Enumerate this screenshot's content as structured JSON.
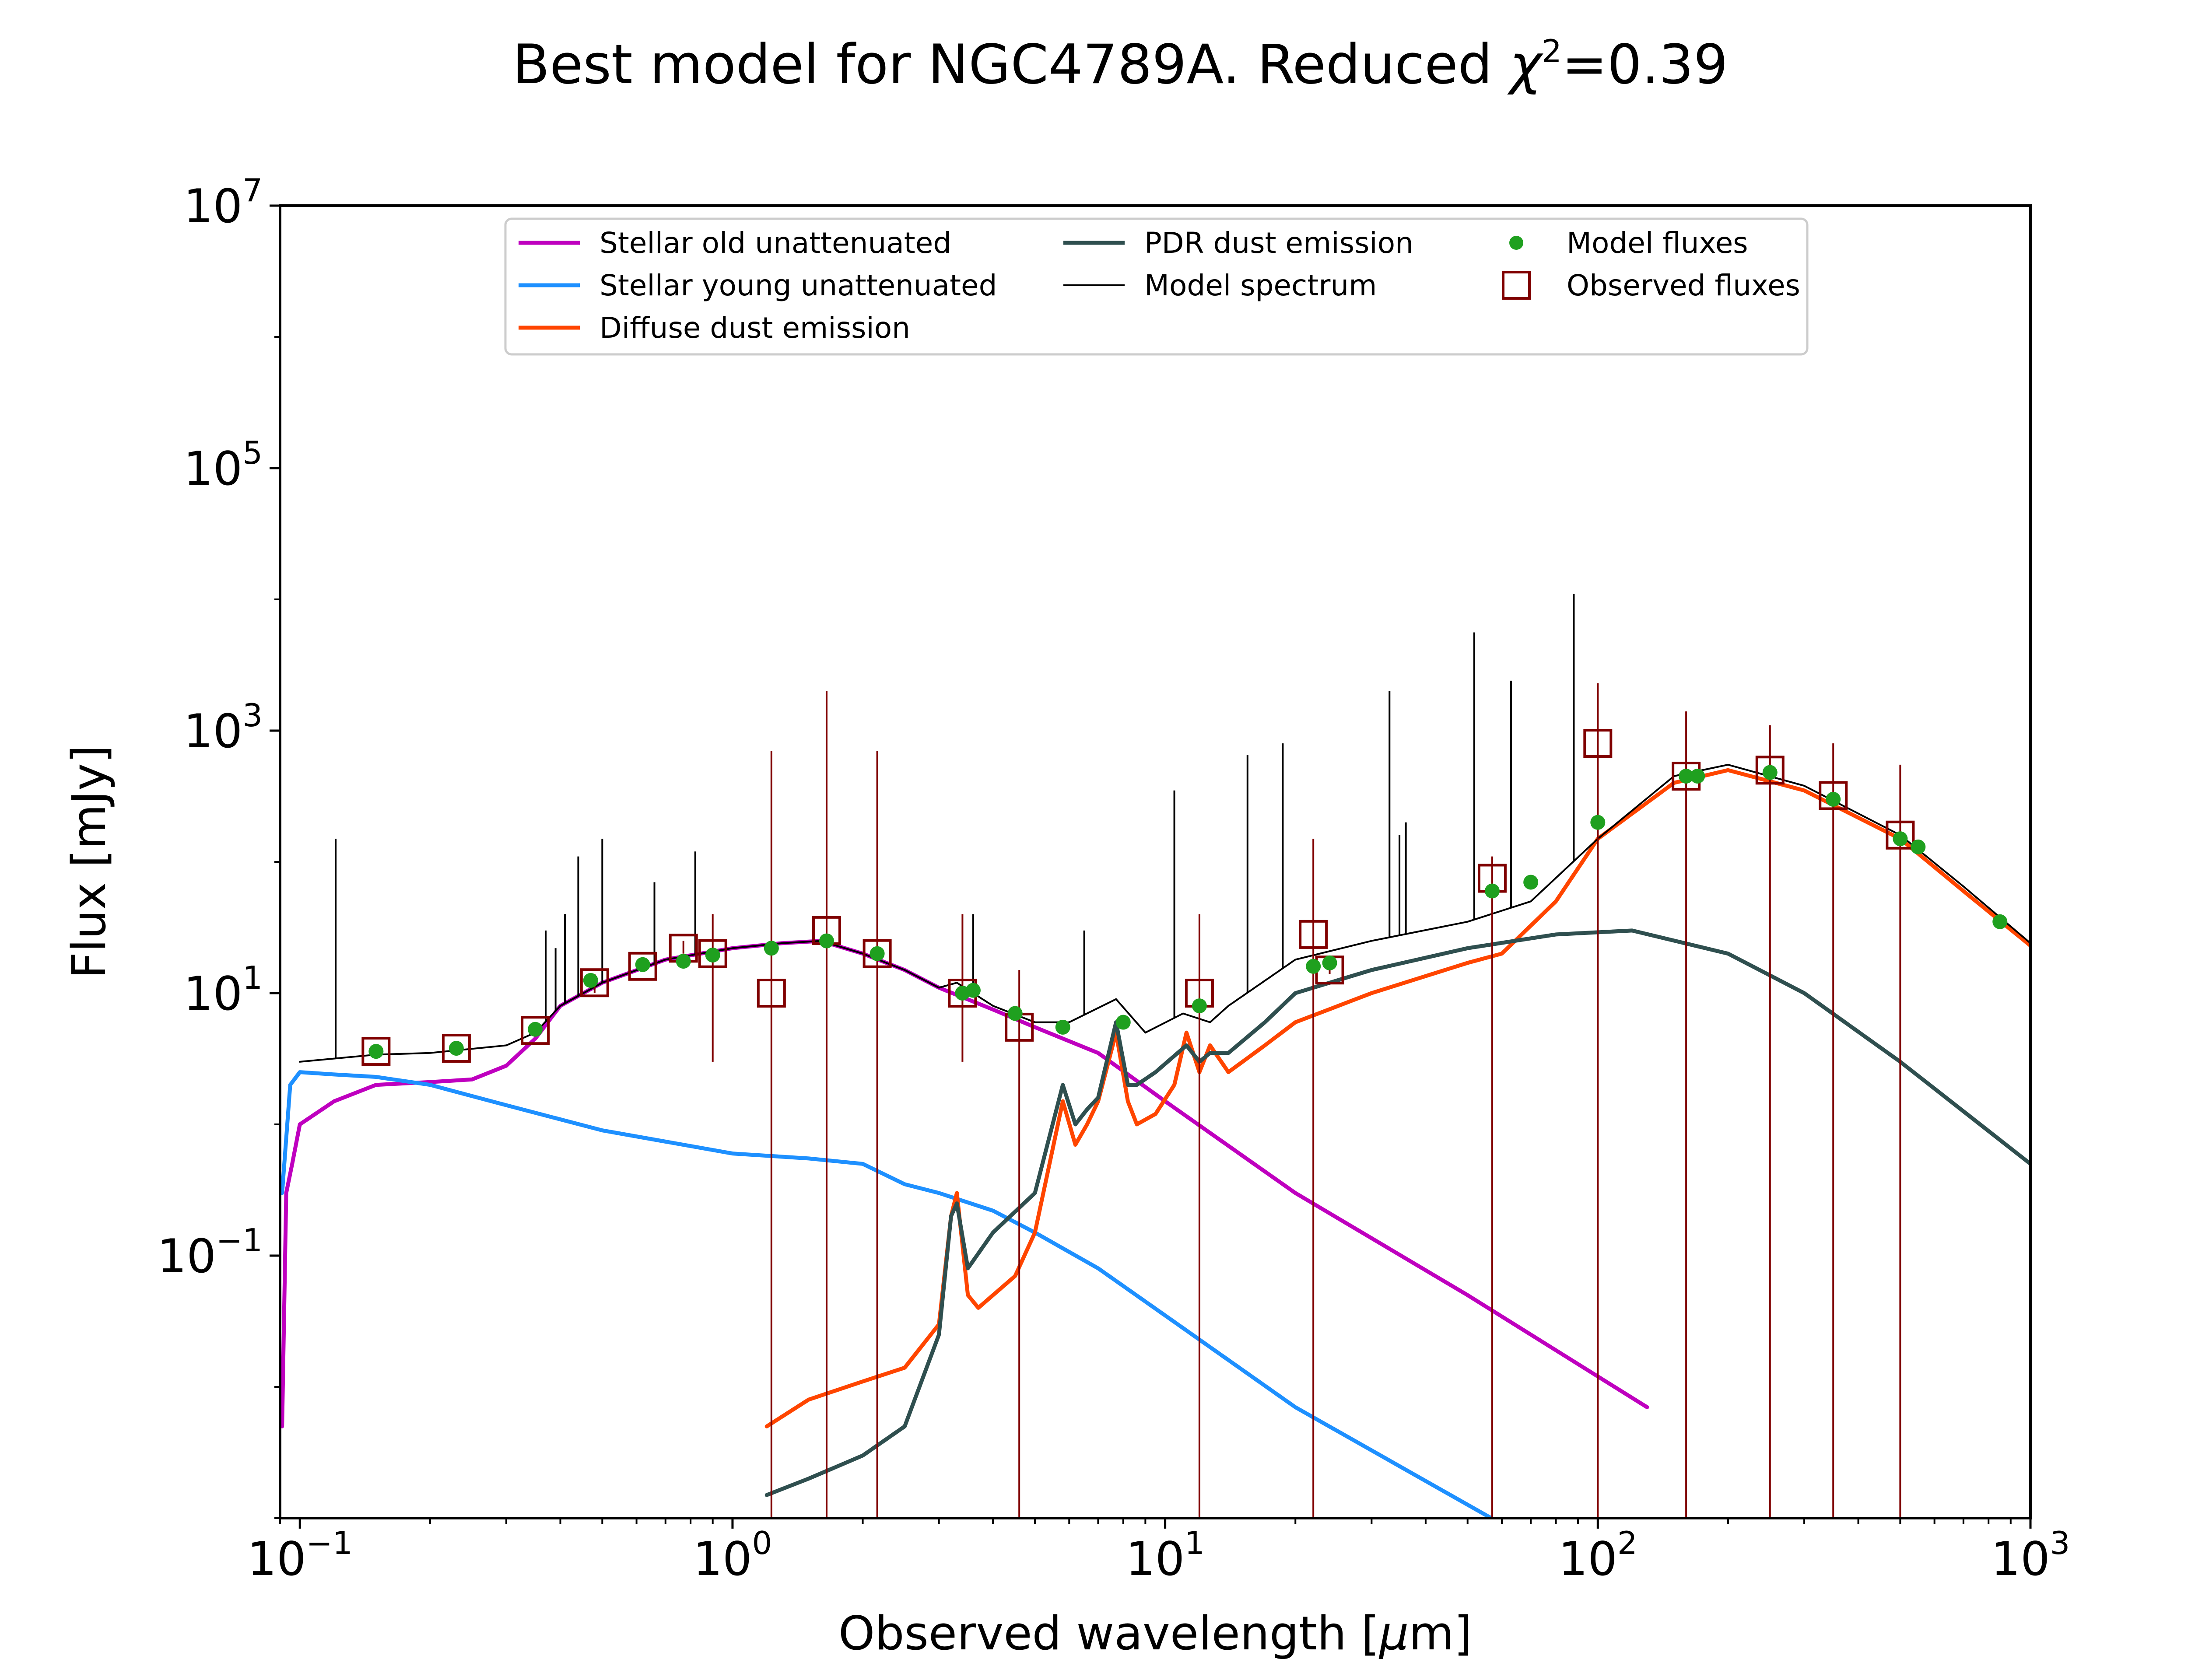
{
  "chart_data": {
    "type": "line",
    "title": "Best model for NGC4789A. Reduced χ²=0.39",
    "title_parts": {
      "main": "Best model for NGC4789A. Reduced ",
      "chi": "χ",
      "sup": "2",
      "tail": "=0.39"
    },
    "xlabel": "Observed wavelength [μm]",
    "xlabel_parts": {
      "pre": "Observed wavelength [",
      "mu": "μ",
      "post": "m]"
    },
    "ylabel": "Flux [mJy]",
    "x_scale": "log",
    "y_scale": "log",
    "xlim": [
      0.09,
      1000
    ],
    "ylim": [
      0.001,
      10000000
    ],
    "x_ticks": [
      {
        "value": 0.1,
        "base": "10",
        "exp": "−1"
      },
      {
        "value": 1,
        "base": "10",
        "exp": "0"
      },
      {
        "value": 10,
        "base": "10",
        "exp": "1"
      },
      {
        "value": 100,
        "base": "10",
        "exp": "2"
      },
      {
        "value": 1000,
        "base": "10",
        "exp": "3"
      }
    ],
    "y_ticks": [
      {
        "value": 0.1,
        "base": "10",
        "exp": "−1"
      },
      {
        "value": 10,
        "base": "10",
        "exp": "1"
      },
      {
        "value": 1000,
        "base": "10",
        "exp": "3"
      },
      {
        "value": 100000,
        "base": "10",
        "exp": "5"
      },
      {
        "value": 10000000,
        "base": "10",
        "exp": "7"
      }
    ],
    "grid": false,
    "legend_position": "top-center",
    "series": [
      {
        "name": "Stellar old unattenuated",
        "color": "#bf00bf",
        "points": [
          [
            0.091,
            0.005
          ],
          [
            0.093,
            0.3
          ],
          [
            0.096,
            0.5
          ],
          [
            0.1,
            1.0
          ],
          [
            0.12,
            1.5
          ],
          [
            0.15,
            2.0
          ],
          [
            0.2,
            2.1
          ],
          [
            0.25,
            2.2
          ],
          [
            0.3,
            2.8
          ],
          [
            0.35,
            4.5
          ],
          [
            0.4,
            8
          ],
          [
            0.5,
            12
          ],
          [
            0.7,
            18
          ],
          [
            1.0,
            22
          ],
          [
            1.3,
            24
          ],
          [
            1.6,
            25
          ],
          [
            2.0,
            20
          ],
          [
            2.5,
            15
          ],
          [
            3.0,
            11
          ],
          [
            4.0,
            7.5
          ],
          [
            5.0,
            5.5
          ],
          [
            7.0,
            3.5
          ],
          [
            10.0,
            1.5
          ],
          [
            20.0,
            0.3
          ],
          [
            50.0,
            0.05
          ],
          [
            130.0,
            0.007
          ]
        ]
      },
      {
        "name": "Stellar young unattenuated",
        "color": "#1e90ff",
        "points": [
          [
            0.091,
            0.3
          ],
          [
            0.095,
            2.0
          ],
          [
            0.1,
            2.5
          ],
          [
            0.12,
            2.4
          ],
          [
            0.15,
            2.3
          ],
          [
            0.2,
            2.0
          ],
          [
            0.3,
            1.4
          ],
          [
            0.5,
            0.9
          ],
          [
            1.0,
            0.6
          ],
          [
            1.5,
            0.55
          ],
          [
            2.0,
            0.5
          ],
          [
            2.5,
            0.35
          ],
          [
            3.0,
            0.3
          ],
          [
            4.0,
            0.22
          ],
          [
            5.0,
            0.15
          ],
          [
            7.0,
            0.08
          ],
          [
            10.0,
            0.035
          ],
          [
            20.0,
            0.007
          ],
          [
            60.0,
            0.0009
          ]
        ]
      },
      {
        "name": "Diffuse dust emission",
        "color": "#ff4500",
        "points": [
          [
            1.2,
            0.005
          ],
          [
            1.5,
            0.008
          ],
          [
            2.0,
            0.011
          ],
          [
            2.5,
            0.014
          ],
          [
            3.0,
            0.03
          ],
          [
            3.2,
            0.2
          ],
          [
            3.3,
            0.3
          ],
          [
            3.5,
            0.05
          ],
          [
            3.7,
            0.04
          ],
          [
            4.0,
            0.05
          ],
          [
            4.5,
            0.07
          ],
          [
            5.0,
            0.15
          ],
          [
            5.8,
            1.5
          ],
          [
            6.2,
            0.7
          ],
          [
            6.6,
            1.0
          ],
          [
            7.0,
            1.5
          ],
          [
            7.7,
            5.0
          ],
          [
            8.2,
            1.5
          ],
          [
            8.6,
            1.0
          ],
          [
            9.5,
            1.2
          ],
          [
            10.5,
            2.0
          ],
          [
            11.2,
            5.0
          ],
          [
            12.0,
            2.5
          ],
          [
            12.7,
            4.0
          ],
          [
            14.0,
            2.5
          ],
          [
            17.0,
            4.0
          ],
          [
            20.0,
            6.0
          ],
          [
            30.0,
            10.0
          ],
          [
            50.0,
            17.0
          ],
          [
            60.0,
            20.0
          ],
          [
            80.0,
            50.0
          ],
          [
            100.0,
            150.0
          ],
          [
            150.0,
            400.0
          ],
          [
            200.0,
            500.0
          ],
          [
            300.0,
            350.0
          ],
          [
            500.0,
            150.0
          ],
          [
            700.0,
            60.0
          ],
          [
            1000.0,
            23.0
          ]
        ]
      },
      {
        "name": "PDR dust emission",
        "color": "#2f4f4f",
        "points": [
          [
            1.2,
            0.0015
          ],
          [
            1.5,
            0.002
          ],
          [
            2.0,
            0.003
          ],
          [
            2.5,
            0.005
          ],
          [
            3.0,
            0.025
          ],
          [
            3.2,
            0.2
          ],
          [
            3.3,
            0.25
          ],
          [
            3.5,
            0.08
          ],
          [
            4.0,
            0.15
          ],
          [
            5.0,
            0.3
          ],
          [
            5.8,
            2.0
          ],
          [
            6.2,
            1.0
          ],
          [
            6.6,
            1.3
          ],
          [
            7.0,
            1.6
          ],
          [
            7.7,
            6.0
          ],
          [
            8.2,
            2.0
          ],
          [
            8.6,
            2.0
          ],
          [
            9.5,
            2.5
          ],
          [
            11.2,
            4.0
          ],
          [
            12.0,
            3.0
          ],
          [
            12.7,
            3.5
          ],
          [
            14.0,
            3.5
          ],
          [
            17.0,
            6.0
          ],
          [
            20.0,
            10.0
          ],
          [
            30.0,
            15.0
          ],
          [
            50.0,
            22.0
          ],
          [
            80.0,
            28.0
          ],
          [
            120.0,
            30.0
          ],
          [
            200.0,
            20.0
          ],
          [
            300.0,
            10.0
          ],
          [
            500.0,
            3.0
          ],
          [
            1000.0,
            0.5
          ]
        ]
      },
      {
        "name": "Model spectrum",
        "color": "#000000",
        "points": [
          [
            0.1,
            3.0
          ],
          [
            0.15,
            3.4
          ],
          [
            0.2,
            3.5
          ],
          [
            0.3,
            4.0
          ],
          [
            0.35,
            5.0
          ],
          [
            0.4,
            8.0
          ],
          [
            0.5,
            12.0
          ],
          [
            0.7,
            18.0
          ],
          [
            1.0,
            22.0
          ],
          [
            1.3,
            24.0
          ],
          [
            1.6,
            25.0
          ],
          [
            2.0,
            20.0
          ],
          [
            2.5,
            15.0
          ],
          [
            3.0,
            11.0
          ],
          [
            3.3,
            12.0
          ],
          [
            4.0,
            8.0
          ],
          [
            5.0,
            6.0
          ],
          [
            6.0,
            6.0
          ],
          [
            7.7,
            9.0
          ],
          [
            9.0,
            5.0
          ],
          [
            11.0,
            7.0
          ],
          [
            12.7,
            6.0
          ],
          [
            14.0,
            8.0
          ],
          [
            20.0,
            18.0
          ],
          [
            30.0,
            25.0
          ],
          [
            50.0,
            35.0
          ],
          [
            70.0,
            50.0
          ],
          [
            100.0,
            150.0
          ],
          [
            150.0,
            450.0
          ],
          [
            200.0,
            550.0
          ],
          [
            300.0,
            380.0
          ],
          [
            500.0,
            160.0
          ],
          [
            700.0,
            65.0
          ],
          [
            1000.0,
            24.0
          ]
        ]
      }
    ],
    "model_spectrum_lines": [
      {
        "x": 0.121,
        "y": 150
      },
      {
        "x": 0.37,
        "y": 30
      },
      {
        "x": 0.39,
        "y": 22
      },
      {
        "x": 0.41,
        "y": 40
      },
      {
        "x": 0.44,
        "y": 110
      },
      {
        "x": 0.5,
        "y": 150
      },
      {
        "x": 0.66,
        "y": 70
      },
      {
        "x": 0.82,
        "y": 120
      },
      {
        "x": 3.6,
        "y": 40
      },
      {
        "x": 6.5,
        "y": 30
      },
      {
        "x": 10.5,
        "y": 350
      },
      {
        "x": 15.5,
        "y": 650
      },
      {
        "x": 18.7,
        "y": 800
      },
      {
        "x": 33.0,
        "y": 2000
      },
      {
        "x": 34.8,
        "y": 160
      },
      {
        "x": 36.0,
        "y": 200
      },
      {
        "x": 51.8,
        "y": 5600
      },
      {
        "x": 63.0,
        "y": 2400
      },
      {
        "x": 88.0,
        "y": 11000
      }
    ],
    "model_fluxes": {
      "name": "Model fluxes",
      "color": "#1fa01f",
      "points": [
        [
          0.15,
          3.6
        ],
        [
          0.23,
          3.8
        ],
        [
          0.35,
          5.3
        ],
        [
          0.47,
          12.5
        ],
        [
          0.62,
          16.5
        ],
        [
          0.77,
          17.5
        ],
        [
          0.9,
          19.5
        ],
        [
          1.23,
          22.0
        ],
        [
          1.65,
          25.0
        ],
        [
          2.16,
          20.0
        ],
        [
          3.4,
          10.0
        ],
        [
          3.6,
          10.5
        ],
        [
          4.5,
          7.0
        ],
        [
          5.8,
          5.5
        ],
        [
          8.0,
          6.0
        ],
        [
          12.0,
          8.0
        ],
        [
          22.0,
          16.0
        ],
        [
          24.0,
          17.0
        ],
        [
          57.0,
          60.0
        ],
        [
          70.0,
          70.0
        ],
        [
          100.0,
          200.0
        ],
        [
          160.0,
          450.0
        ],
        [
          170.0,
          450.0
        ],
        [
          250.0,
          480.0
        ],
        [
          350.0,
          300.0
        ],
        [
          500.0,
          150.0
        ],
        [
          550.0,
          130.0
        ],
        [
          850.0,
          35.0
        ]
      ]
    },
    "observed_fluxes": {
      "name": "Observed fluxes",
      "color": "#800000",
      "points": [
        {
          "x": 0.15,
          "y": 3.6,
          "ylo": 3.4,
          "yhi": 3.8
        },
        {
          "x": 0.23,
          "y": 3.8,
          "ylo": 3.6,
          "yhi": 4.0
        },
        {
          "x": 0.35,
          "y": 5.2,
          "ylo": 5.0,
          "yhi": 5.5
        },
        {
          "x": 0.48,
          "y": 12.0,
          "ylo": 10.0,
          "yhi": 14.0
        },
        {
          "x": 0.62,
          "y": 16.0,
          "ylo": 15.0,
          "yhi": 17.0
        },
        {
          "x": 0.77,
          "y": 22.0,
          "ylo": 20.0,
          "yhi": 25.0
        },
        {
          "x": 0.9,
          "y": 20.0,
          "ylo": 3.0,
          "yhi": 40.0
        },
        {
          "x": 1.23,
          "y": 10.0,
          "ylo": 0.001,
          "yhi": 700.0
        },
        {
          "x": 1.65,
          "y": 30.0,
          "ylo": 0.001,
          "yhi": 2000.0
        },
        {
          "x": 2.16,
          "y": 20.0,
          "ylo": 0.001,
          "yhi": 700.0
        },
        {
          "x": 3.4,
          "y": 10.0,
          "ylo": 3.0,
          "yhi": 40.0
        },
        {
          "x": 4.6,
          "y": 5.5,
          "ylo": 0.001,
          "yhi": 15.0
        },
        {
          "x": 12.0,
          "y": 10.0,
          "ylo": 0.001,
          "yhi": 40.0
        },
        {
          "x": 22.0,
          "y": 28.0,
          "ylo": 0.001,
          "yhi": 150.0
        },
        {
          "x": 24.0,
          "y": 15.0,
          "ylo": 14.0,
          "yhi": 16.0
        },
        {
          "x": 57.0,
          "y": 75.0,
          "ylo": 0.001,
          "yhi": 110.0
        },
        {
          "x": 100.0,
          "y": 800.0,
          "ylo": 0.001,
          "yhi": 2300.0
        },
        {
          "x": 160.0,
          "y": 450.0,
          "ylo": 0.001,
          "yhi": 1400.0
        },
        {
          "x": 250.0,
          "y": 500.0,
          "ylo": 0.001,
          "yhi": 1100.0
        },
        {
          "x": 350.0,
          "y": 320.0,
          "ylo": 0.001,
          "yhi": 800.0
        },
        {
          "x": 500.0,
          "y": 160.0,
          "ylo": 0.001,
          "yhi": 550.0
        }
      ]
    },
    "legend": [
      {
        "label": "Stellar old unattenuated",
        "kind": "line",
        "color": "#bf00bf"
      },
      {
        "label": "Stellar young unattenuated",
        "kind": "line",
        "color": "#1e90ff"
      },
      {
        "label": "Diffuse dust emission",
        "kind": "line",
        "color": "#ff4500"
      },
      {
        "label": "PDR dust emission",
        "kind": "line",
        "color": "#2f4f4f"
      },
      {
        "label": "Model spectrum",
        "kind": "thinline",
        "color": "#000000"
      },
      {
        "label": "Model fluxes",
        "kind": "dot",
        "color": "#1fa01f"
      },
      {
        "label": "Observed fluxes",
        "kind": "square",
        "color": "#800000"
      }
    ]
  }
}
